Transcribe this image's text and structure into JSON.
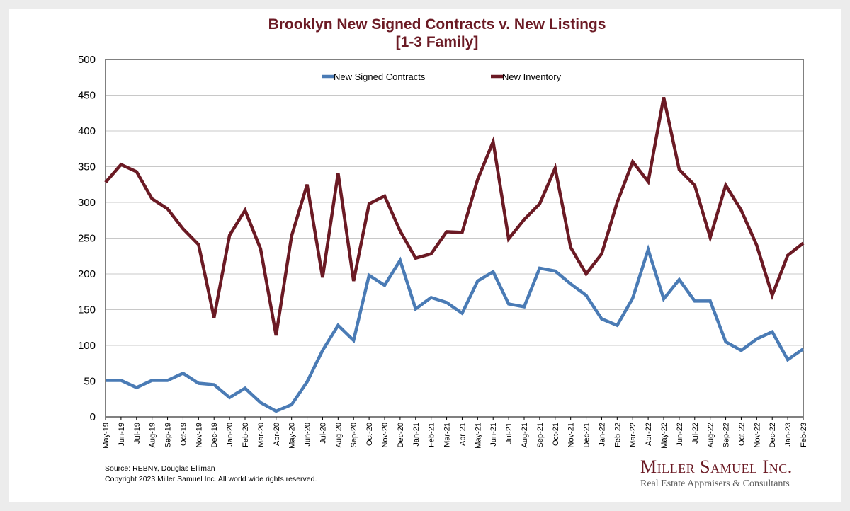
{
  "chart_data": {
    "type": "line",
    "title_lines": [
      "Brooklyn New Signed Contracts v. New Listings",
      "[1-3 Family]"
    ],
    "categories": [
      "May-19",
      "Jun-19",
      "Jul-19",
      "Aug-19",
      "Sep-19",
      "Oct-19",
      "Nov-19",
      "Dec-19",
      "Jan-20",
      "Feb-20",
      "Mar-20",
      "Apr-20",
      "May-20",
      "Jun-20",
      "Jul-20",
      "Aug-20",
      "Sep-20",
      "Oct-20",
      "Nov-20",
      "Dec-20",
      "Jan-21",
      "Feb-21",
      "Mar-21",
      "Apr-21",
      "May-21",
      "Jun-21",
      "Jul-21",
      "Aug-21",
      "Sep-21",
      "Oct-21",
      "Nov-21",
      "Dec-21",
      "Jan-22",
      "Feb-22",
      "Mar-22",
      "Apr-22",
      "May-22",
      "Jun-22",
      "Jul-22",
      "Aug-22",
      "Sep-22",
      "Oct-22",
      "Nov-22",
      "Dec-22",
      "Jan-23",
      "Feb-23"
    ],
    "series": [
      {
        "name": "New Signed Contracts",
        "color": "#4a7bb5",
        "values": [
          51,
          51,
          41,
          51,
          51,
          61,
          47,
          45,
          27,
          40,
          20,
          8,
          17,
          49,
          93,
          128,
          107,
          198,
          184,
          219,
          151,
          167,
          160,
          145,
          190,
          203,
          158,
          154,
          208,
          204,
          186,
          170,
          137,
          128,
          166,
          234,
          165,
          192,
          162,
          162,
          105,
          93,
          109,
          119,
          80,
          95
        ]
      },
      {
        "name": "New Inventory",
        "color": "#6b1a24",
        "values": [
          328,
          353,
          343,
          305,
          291,
          263,
          241,
          139,
          254,
          289,
          235,
          114,
          253,
          325,
          195,
          341,
          190,
          298,
          309,
          260,
          222,
          228,
          259,
          258,
          332,
          385,
          249,
          276,
          298,
          348,
          237,
          200,
          228,
          300,
          357,
          329,
          447,
          346,
          324,
          251,
          324,
          289,
          240,
          170,
          226,
          243
        ]
      }
    ],
    "ylim": [
      0,
      500
    ],
    "yticks": [
      0,
      50,
      100,
      150,
      200,
      250,
      300,
      350,
      400,
      450,
      500
    ],
    "grid": true,
    "legend_position": "top"
  },
  "footer": {
    "source": "Source: REBNY, Douglas Elliman",
    "copyright": "Copyright 2023 Miller Samuel Inc.  All world wide rights reserved."
  },
  "logo": {
    "name": "Miller Samuel Inc.",
    "tagline": "Real Estate Appraisers & Consultants"
  },
  "colors": {
    "title": "#6b1a24",
    "contracts": "#4a7bb5",
    "inventory": "#6b1a24",
    "grid": "#c8c8c8",
    "background": "#ececec"
  }
}
